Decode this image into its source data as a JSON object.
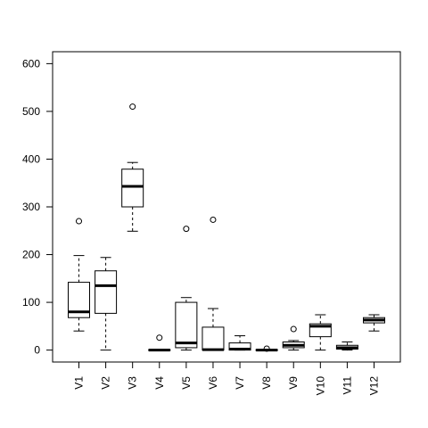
{
  "chart_data": {
    "type": "boxplot",
    "title": "",
    "xlabel": "",
    "ylabel": "",
    "ylim": [
      -25,
      625
    ],
    "yticks": [
      0,
      100,
      200,
      300,
      400,
      500,
      600
    ],
    "grid": false,
    "categories": [
      "V1",
      "V2",
      "V3",
      "V4",
      "V5",
      "V6",
      "V7",
      "V8",
      "V9",
      "V10",
      "V11",
      "V12"
    ],
    "boxes": [
      {
        "name": "V1",
        "whisker_low": 40,
        "q1": 68,
        "median": 80,
        "q3": 142,
        "whisker_high": 198,
        "outliers": [
          270
        ]
      },
      {
        "name": "V2",
        "whisker_low": 0,
        "q1": 77,
        "median": 135,
        "q3": 166,
        "whisker_high": 194,
        "outliers": []
      },
      {
        "name": "V3",
        "whisker_low": 249,
        "q1": 300,
        "median": 343,
        "q3": 379,
        "whisker_high": 393,
        "outliers": [
          510
        ]
      },
      {
        "name": "V4",
        "whisker_low": 0,
        "q1": 0,
        "median": 0,
        "q3": 1,
        "whisker_high": 1,
        "outliers": [
          26
        ]
      },
      {
        "name": "V5",
        "whisker_low": 0,
        "q1": 5,
        "median": 15,
        "q3": 100,
        "whisker_high": 110,
        "outliers": [
          254
        ]
      },
      {
        "name": "V6",
        "whisker_low": 0,
        "q1": 0,
        "median": 1,
        "q3": 48,
        "whisker_high": 87,
        "outliers": [
          273
        ]
      },
      {
        "name": "V7",
        "whisker_low": 0,
        "q1": 0,
        "median": 2,
        "q3": 15,
        "whisker_high": 30,
        "outliers": []
      },
      {
        "name": "V8",
        "whisker_low": 0,
        "q1": 0,
        "median": 0,
        "q3": 1,
        "whisker_high": 1,
        "outliers": [
          3
        ]
      },
      {
        "name": "V9",
        "whisker_low": 0,
        "q1": 5,
        "median": 10,
        "q3": 17,
        "whisker_high": 20,
        "outliers": [
          44
        ]
      },
      {
        "name": "V10",
        "whisker_low": 0,
        "q1": 28,
        "median": 50,
        "q3": 55,
        "whisker_high": 74,
        "outliers": []
      },
      {
        "name": "V11",
        "whisker_low": 0,
        "q1": 2,
        "median": 5,
        "q3": 10,
        "whisker_high": 17,
        "outliers": []
      },
      {
        "name": "V12",
        "whisker_low": 40,
        "q1": 57,
        "median": 63,
        "q3": 68,
        "whisker_high": 74,
        "outliers": []
      }
    ]
  }
}
